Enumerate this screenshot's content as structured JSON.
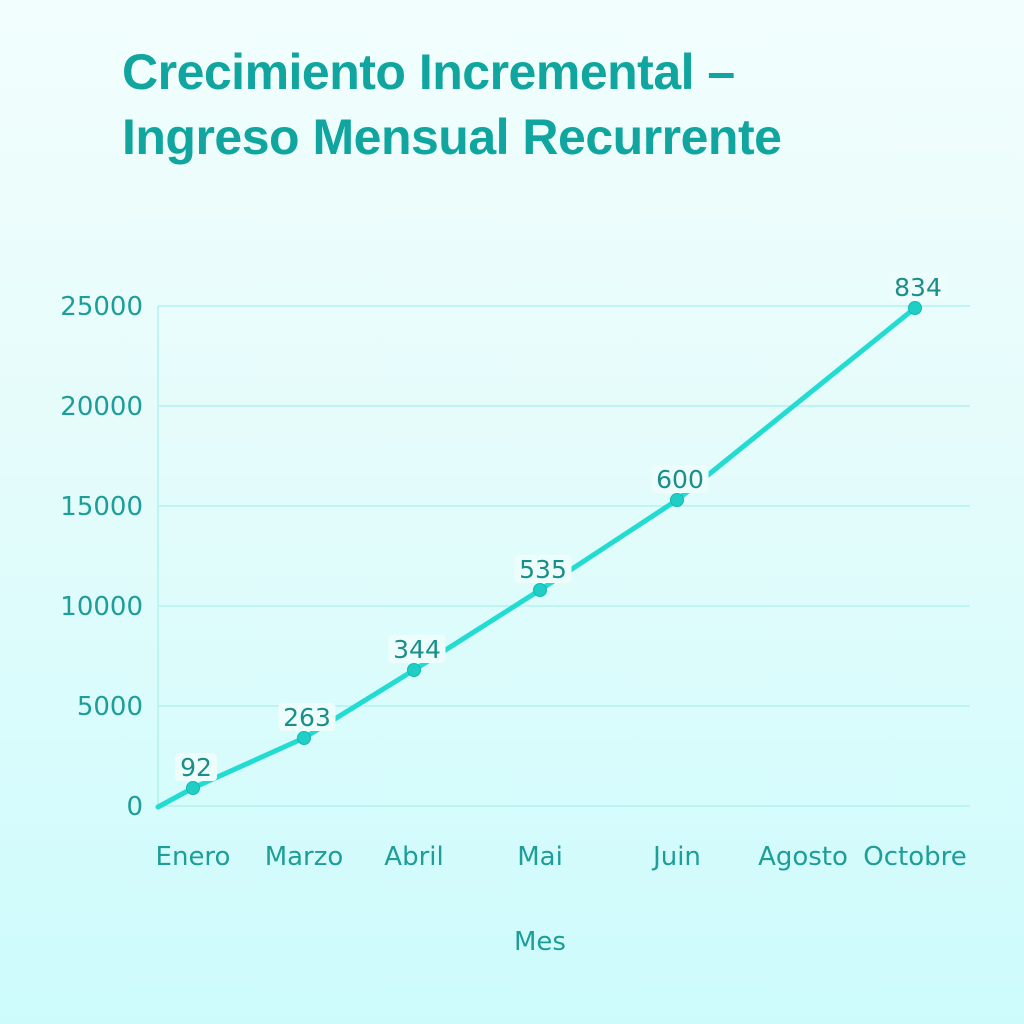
{
  "chart_data": {
    "type": "line",
    "title": [
      "Crecimiento Incremental –",
      "Ingreso Mensual Recurrente"
    ],
    "xlabel": "Mes",
    "ylabel": "",
    "categories": [
      "Enero",
      "Marzo",
      "Abril",
      "Mai",
      "Juin",
      "Agosto",
      "Octobre"
    ],
    "ylim": [
      0,
      25000
    ],
    "yticks": [
      0,
      5000,
      10000,
      15000,
      20000,
      25000
    ],
    "grid": true,
    "series": [
      {
        "points": [
          {
            "x": "Enero",
            "y": 900,
            "label": "92"
          },
          {
            "x": "Marzo",
            "y": 3400,
            "label": "263"
          },
          {
            "x": "Abril",
            "y": 6800,
            "label": "344"
          },
          {
            "x": "Mai",
            "y": 10800,
            "label": "535"
          },
          {
            "x": "Juin",
            "y": 15300,
            "label": "600"
          },
          {
            "x": "Octobre",
            "y": 24900,
            "label": "834"
          }
        ],
        "color": "#22dcd2"
      }
    ],
    "colors": {
      "grid": "#b3f1ef",
      "point": "#1fcfc6",
      "text": "#1d9e99",
      "title": "#10a59e"
    }
  }
}
